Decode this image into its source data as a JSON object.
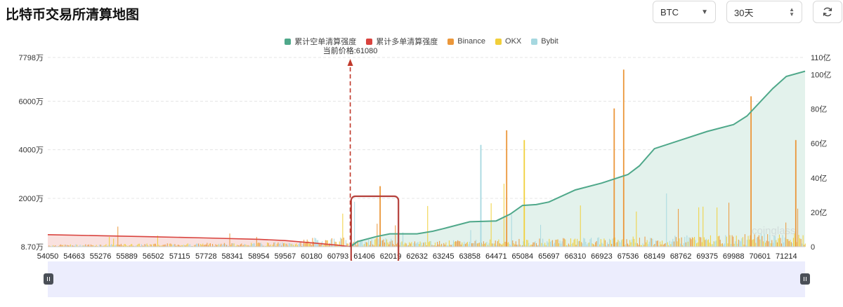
{
  "page": {
    "title": "比特币交易所清算地图"
  },
  "controls": {
    "coin": "BTC",
    "period": "30天",
    "refresh_icon": "refresh-icon"
  },
  "legend": {
    "items": [
      {
        "label": "累计空单清算强度",
        "color": "#4fa88a"
      },
      {
        "label": "累计多单清算强度",
        "color": "#d9433e"
      },
      {
        "label": "Binance",
        "color": "#eb973a"
      },
      {
        "label": "OKX",
        "color": "#f1cf3a"
      },
      {
        "label": "Bybit",
        "color": "#a6d8e0"
      }
    ]
  },
  "annotation": {
    "current_price_label": "当前价格:61080",
    "current_price": 61080,
    "highlight_range": [
      61100,
      62200
    ]
  },
  "colors": {
    "short_line": "#4fa88a",
    "short_fill": "#e3f2ec",
    "long_line": "#d9433e",
    "long_fill": "#f9e1df",
    "highlight": "#b5403b",
    "marker": "#c0392b",
    "grid": "#e5e5e5"
  },
  "chart_data": {
    "type": "bar",
    "title": "",
    "xlabel": "",
    "x_ticks": [
      "54050",
      "54663",
      "55276",
      "55889",
      "56502",
      "57115",
      "57728",
      "58341",
      "58954",
      "59567",
      "60180",
      "60793",
      "61406",
      "62019",
      "62632",
      "63245",
      "63858",
      "64471",
      "65084",
      "65697",
      "66310",
      "66923",
      "67536",
      "68149",
      "68762",
      "69375",
      "69988",
      "70601",
      "71214"
    ],
    "x_range": [
      54050,
      71650
    ],
    "y_left": {
      "ticks": [
        "8.70万",
        "2000万",
        "4000万",
        "6000万",
        "7798万"
      ],
      "tick_values": [
        8.7,
        2000,
        4000,
        6000,
        7798
      ],
      "unit": "万",
      "range": [
        8.7,
        7798
      ]
    },
    "y_right": {
      "ticks": [
        "0",
        "20亿",
        "40亿",
        "60亿",
        "80亿",
        "100亿",
        "110亿"
      ],
      "tick_values": [
        0,
        20,
        40,
        60,
        80,
        100,
        110
      ],
      "unit": "亿",
      "range": [
        0,
        110
      ]
    },
    "series": [
      {
        "name": "累计空单清算强度",
        "kind": "cumulative_line",
        "axis": "right",
        "points": [
          [
            61080,
            0
          ],
          [
            61250,
            3
          ],
          [
            61700,
            6
          ],
          [
            62000,
            7.5
          ],
          [
            62632,
            7.5
          ],
          [
            63000,
            9
          ],
          [
            63245,
            10.5
          ],
          [
            63858,
            14.5
          ],
          [
            64471,
            15
          ],
          [
            64800,
            19
          ],
          [
            65084,
            24
          ],
          [
            65400,
            24.5
          ],
          [
            65697,
            26
          ],
          [
            66310,
            33
          ],
          [
            66923,
            37
          ],
          [
            67536,
            42
          ],
          [
            67800,
            47
          ],
          [
            68149,
            57
          ],
          [
            68762,
            62
          ],
          [
            69375,
            67
          ],
          [
            69988,
            71
          ],
          [
            70300,
            76
          ],
          [
            70601,
            84
          ],
          [
            70900,
            92
          ],
          [
            71214,
            99
          ],
          [
            71650,
            102
          ]
        ]
      },
      {
        "name": "累计多单清算强度",
        "kind": "cumulative_line",
        "axis": "right",
        "points": [
          [
            54050,
            7
          ],
          [
            55276,
            6.4
          ],
          [
            56502,
            5.8
          ],
          [
            57728,
            5.1
          ],
          [
            58954,
            4.3
          ],
          [
            59567,
            3.6
          ],
          [
            60180,
            2.3
          ],
          [
            60793,
            0.9
          ],
          [
            61080,
            0
          ]
        ]
      },
      {
        "name": "Binance",
        "kind": "bars",
        "axis": "left",
        "range": [
          54050,
          71650
        ]
      },
      {
        "name": "OKX",
        "kind": "bars",
        "axis": "left",
        "range": [
          54050,
          71650
        ]
      },
      {
        "name": "Bybit",
        "kind": "bars",
        "axis": "left",
        "range": [
          54050,
          71650
        ]
      }
    ],
    "notable_bars": [
      {
        "x": 67420,
        "value": 7300,
        "series": "Binance"
      },
      {
        "x": 64700,
        "value": 4800,
        "series": "Binance"
      },
      {
        "x": 67200,
        "value": 5700,
        "series": "Binance"
      },
      {
        "x": 70380,
        "value": 6200,
        "series": "Binance"
      },
      {
        "x": 71420,
        "value": 4400,
        "series": "Binance"
      },
      {
        "x": 61760,
        "value": 2500,
        "series": "Binance"
      },
      {
        "x": 65110,
        "value": 4400,
        "series": "OKX"
      },
      {
        "x": 64100,
        "value": 4200,
        "series": "Bybit"
      }
    ],
    "watermark": "coinglass",
    "grid": true,
    "legend_position": "top-center"
  }
}
